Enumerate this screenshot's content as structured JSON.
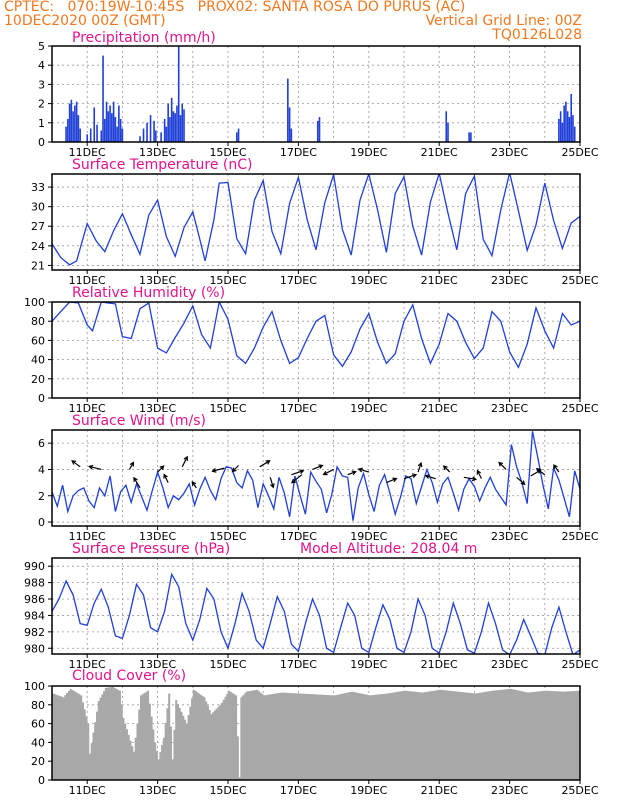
{
  "header": {
    "line1": "CPTEC:   070:19W-10:45S   PROX02: SANTA ROSA DO PURUS (AC)",
    "line2": "10DEC2020 00Z (GMT)",
    "grid_note": "Vertical Grid Line: 00Z",
    "code": "TQ0126L028"
  },
  "colors": {
    "header": "#f07820",
    "title": "#e0148c",
    "series": "#1f3fd8",
    "cloud": "#a8a8a8"
  },
  "x_axis": {
    "start": "10DEC2020 00Z",
    "days": 15,
    "tick_labels": [
      "11DEC",
      "13DEC",
      "15DEC",
      "17DEC",
      "19DEC",
      "21DEC",
      "23DEC",
      "25DEC"
    ],
    "tick_days": [
      1,
      3,
      5,
      7,
      9,
      11,
      13,
      15
    ]
  },
  "chart_data": [
    {
      "type": "bar",
      "title": "Precipitation (mm/h)",
      "ylim": [
        0,
        5
      ],
      "yticks": [
        0,
        1,
        2,
        3,
        4,
        5
      ],
      "x_unit": "days since 10DEC2020 00Z",
      "bars": [
        [
          0.4,
          0.8
        ],
        [
          0.45,
          1.2
        ],
        [
          0.5,
          2.0
        ],
        [
          0.55,
          2.2
        ],
        [
          0.6,
          1.6
        ],
        [
          0.65,
          1.9
        ],
        [
          0.7,
          2.1
        ],
        [
          0.75,
          1.4
        ],
        [
          0.8,
          0.7
        ],
        [
          1.0,
          0.4
        ],
        [
          1.1,
          0.7
        ],
        [
          1.2,
          1.8
        ],
        [
          1.28,
          0.9
        ],
        [
          1.4,
          0.6
        ],
        [
          1.45,
          4.5
        ],
        [
          1.5,
          1.2
        ],
        [
          1.55,
          2.1
        ],
        [
          1.6,
          1.6
        ],
        [
          1.65,
          1.9
        ],
        [
          1.7,
          1.5
        ],
        [
          1.75,
          2.1
        ],
        [
          1.8,
          1.3
        ],
        [
          1.85,
          0.8
        ],
        [
          1.9,
          1.9
        ],
        [
          1.95,
          1.2
        ],
        [
          2.0,
          0.7
        ],
        [
          2.5,
          0.3
        ],
        [
          2.6,
          0.7
        ],
        [
          2.7,
          1.0
        ],
        [
          2.8,
          1.4
        ],
        [
          2.9,
          1.1
        ],
        [
          2.95,
          0.6
        ],
        [
          3.1,
          0.5
        ],
        [
          3.2,
          1.2
        ],
        [
          3.25,
          0.8
        ],
        [
          3.3,
          2.0
        ],
        [
          3.35,
          1.3
        ],
        [
          3.4,
          2.3
        ],
        [
          3.45,
          1.6
        ],
        [
          3.5,
          1.5
        ],
        [
          3.55,
          1.9
        ],
        [
          3.6,
          5.0
        ],
        [
          3.65,
          1.4
        ],
        [
          3.7,
          2.0
        ],
        [
          3.75,
          1.7
        ],
        [
          5.25,
          0.5
        ],
        [
          5.3,
          0.7
        ],
        [
          6.7,
          3.3
        ],
        [
          6.75,
          1.8
        ],
        [
          6.8,
          0.7
        ],
        [
          7.55,
          1.1
        ],
        [
          7.6,
          1.3
        ],
        [
          11.2,
          1.6
        ],
        [
          11.25,
          1.0
        ],
        [
          11.85,
          0.5
        ],
        [
          11.9,
          0.5
        ],
        [
          14.4,
          1.2
        ],
        [
          14.45,
          1.6
        ],
        [
          14.5,
          1.0
        ],
        [
          14.55,
          1.9
        ],
        [
          14.6,
          2.1
        ],
        [
          14.65,
          1.6
        ],
        [
          14.7,
          1.3
        ],
        [
          14.75,
          2.5
        ],
        [
          14.8,
          1.4
        ],
        [
          14.85,
          0.8
        ]
      ]
    },
    {
      "type": "line",
      "title": "Surface Temperature (nC)",
      "ylim": [
        20.3,
        35
      ],
      "yticks": [
        21,
        24,
        27,
        30,
        33
      ],
      "x_unit": "days since 10DEC2020 00Z",
      "x": [
        0,
        0.25,
        0.5,
        0.7,
        0.9,
        1.0,
        1.25,
        1.5,
        1.75,
        2.0,
        2.25,
        2.5,
        2.75,
        3.0,
        3.25,
        3.5,
        3.75,
        4.0,
        4.2,
        4.35,
        4.6,
        4.75,
        5.0,
        5.25,
        5.5,
        5.75,
        6.0,
        6.25,
        6.5,
        6.75,
        7.0,
        7.25,
        7.5,
        7.75,
        8.0,
        8.25,
        8.5,
        8.75,
        9.0,
        9.25,
        9.5,
        9.75,
        10.0,
        10.25,
        10.5,
        10.75,
        11.0,
        11.25,
        11.5,
        11.75,
        12.0,
        12.25,
        12.5,
        12.75,
        13.0,
        13.25,
        13.5,
        13.75,
        14.0,
        14.25,
        14.5,
        14.75,
        15.0
      ],
      "y": [
        24.3,
        22.2,
        21.1,
        21.7,
        25.5,
        27.4,
        24.8,
        23.1,
        26.3,
        28.9,
        25.7,
        22.7,
        28.7,
        31.0,
        25.4,
        22.4,
        26.8,
        29.2,
        25.0,
        21.7,
        28.0,
        33.6,
        33.7,
        25.1,
        22.8,
        31.0,
        34.0,
        26.2,
        22.8,
        30.5,
        34.5,
        28.0,
        23.4,
        30.6,
        34.9,
        26.5,
        22.6,
        31.0,
        35.0,
        29.5,
        23.0,
        32.0,
        34.6,
        27.0,
        22.6,
        30.7,
        35.1,
        29.0,
        23.4,
        32.0,
        34.7,
        25.0,
        22.5,
        29.5,
        35.2,
        29.4,
        23.3,
        27.2,
        33.6,
        27.9,
        23.6,
        27.5,
        28.5
      ]
    },
    {
      "type": "line",
      "title": "Relative Humidity (%)",
      "ylim": [
        0,
        100
      ],
      "yticks": [
        0,
        20,
        40,
        60,
        80,
        100
      ],
      "x_unit": "days since 10DEC2020 00Z",
      "x": [
        0,
        0.25,
        0.5,
        0.75,
        1.0,
        1.15,
        1.4,
        1.6,
        1.8,
        2.0,
        2.25,
        2.5,
        2.75,
        3.0,
        3.25,
        3.5,
        3.75,
        4.0,
        4.25,
        4.5,
        4.75,
        5.0,
        5.25,
        5.5,
        5.75,
        6.0,
        6.25,
        6.5,
        6.75,
        7.0,
        7.25,
        7.5,
        7.75,
        8.0,
        8.25,
        8.5,
        8.75,
        9.0,
        9.25,
        9.5,
        9.75,
        10.0,
        10.25,
        10.5,
        10.75,
        11.0,
        11.25,
        11.5,
        11.75,
        12.0,
        12.25,
        12.5,
        12.75,
        13.0,
        13.25,
        13.5,
        13.75,
        14.0,
        14.25,
        14.5,
        14.75,
        15.0
      ],
      "y": [
        80,
        90,
        100,
        99,
        76,
        70,
        100,
        99,
        98,
        64,
        62,
        93,
        99,
        52,
        47,
        63,
        78,
        96,
        66,
        52,
        100,
        82,
        44,
        36,
        52,
        74,
        90,
        60,
        36,
        42,
        62,
        80,
        86,
        45,
        33,
        48,
        72,
        88,
        58,
        36,
        46,
        80,
        97,
        62,
        36,
        56,
        88,
        80,
        58,
        41,
        52,
        90,
        80,
        48,
        32,
        56,
        94,
        70,
        52,
        88,
        76,
        80
      ]
    },
    {
      "type": "line",
      "title": "Surface Wind (m/s)",
      "ylim": [
        -0.3,
        7
      ],
      "yticks": [
        0,
        2,
        4,
        6
      ],
      "x_unit": "days since 10DEC2020 00Z",
      "x": [
        0,
        0.15,
        0.3,
        0.45,
        0.6,
        0.75,
        0.9,
        1.05,
        1.2,
        1.35,
        1.5,
        1.65,
        1.8,
        1.95,
        2.1,
        2.25,
        2.4,
        2.55,
        2.7,
        2.85,
        3.0,
        3.15,
        3.3,
        3.45,
        3.6,
        3.75,
        3.9,
        4.05,
        4.2,
        4.35,
        4.5,
        4.65,
        4.8,
        4.95,
        5.1,
        5.25,
        5.4,
        5.55,
        5.7,
        5.85,
        6.0,
        6.15,
        6.3,
        6.45,
        6.6,
        6.75,
        6.9,
        7.05,
        7.2,
        7.35,
        7.5,
        7.65,
        7.8,
        7.95,
        8.1,
        8.25,
        8.4,
        8.55,
        8.7,
        8.85,
        9.0,
        9.15,
        9.3,
        9.45,
        9.6,
        9.75,
        9.9,
        10.05,
        10.2,
        10.35,
        10.5,
        10.65,
        10.8,
        10.95,
        11.1,
        11.25,
        11.4,
        11.55,
        11.7,
        11.85,
        12.0,
        12.15,
        12.3,
        12.45,
        12.6,
        12.75,
        12.9,
        13.05,
        13.2,
        13.35,
        13.5,
        13.65,
        13.8,
        13.95,
        14.1,
        14.25,
        14.4,
        14.55,
        14.7,
        14.85,
        15.0
      ],
      "y": [
        2.3,
        1.2,
        2.8,
        0.8,
        2.0,
        2.4,
        2.6,
        1.6,
        1.1,
        2.6,
        2.0,
        3.5,
        0.8,
        2.3,
        2.8,
        1.5,
        2.9,
        1.9,
        0.9,
        2.4,
        3.8,
        2.6,
        1.1,
        2.0,
        1.7,
        2.2,
        2.9,
        1.3,
        2.5,
        3.4,
        2.4,
        1.7,
        3.3,
        4.2,
        4.1,
        3.0,
        2.6,
        3.9,
        3.2,
        1.1,
        2.9,
        2.0,
        1.0,
        3.4,
        2.2,
        0.4,
        3.5,
        2.0,
        0.6,
        3.8,
        3.1,
        2.5,
        0.7,
        2.1,
        4.2,
        3.5,
        3.4,
        0.1,
        2.6,
        3.7,
        2.1,
        0.8,
        2.8,
        3.6,
        2.2,
        0.6,
        1.9,
        3.5,
        3.3,
        1.4,
        2.7,
        4.0,
        3.0,
        1.5,
        2.9,
        3.4,
        2.2,
        0.9,
        2.5,
        3.3,
        2.7,
        1.6,
        2.6,
        3.4,
        2.5,
        1.9,
        1.3,
        5.9,
        4.2,
        3.0,
        1.4,
        6.9,
        4.9,
        2.8,
        1.0,
        4.1,
        3.2,
        1.8,
        0.4,
        3.9,
        2.5
      ]
    },
    {
      "type": "line",
      "title": "Surface Pressure (hPa)",
      "annotation": "Model Altitude: 208.04 m",
      "ylim": [
        979.3,
        991
      ],
      "yticks": [
        980,
        982,
        984,
        986,
        988,
        990
      ],
      "x_unit": "days since 10DEC2020 00Z",
      "x": [
        0,
        0.2,
        0.4,
        0.6,
        0.8,
        1.0,
        1.2,
        1.4,
        1.6,
        1.8,
        2.0,
        2.2,
        2.4,
        2.6,
        2.8,
        3.0,
        3.2,
        3.4,
        3.6,
        3.8,
        4.0,
        4.2,
        4.4,
        4.6,
        4.8,
        5.0,
        5.2,
        5.4,
        5.6,
        5.8,
        6.0,
        6.2,
        6.4,
        6.6,
        6.8,
        7.0,
        7.2,
        7.4,
        7.6,
        7.8,
        8.0,
        8.2,
        8.4,
        8.6,
        8.8,
        9.0,
        9.2,
        9.4,
        9.6,
        9.8,
        10.0,
        10.2,
        10.4,
        10.6,
        10.8,
        11.0,
        11.2,
        11.4,
        11.6,
        11.8,
        12.0,
        12.2,
        12.4,
        12.6,
        12.8,
        13.0,
        13.2,
        13.4,
        13.6,
        13.8,
        14.0,
        14.2,
        14.4,
        14.6,
        14.8,
        15.0
      ],
      "y": [
        984.5,
        986.0,
        988.2,
        986.5,
        983.0,
        982.8,
        985.5,
        987.2,
        985.0,
        981.5,
        981.2,
        984.0,
        987.8,
        986.5,
        982.5,
        982.0,
        984.5,
        989.0,
        987.5,
        983.0,
        981.0,
        983.5,
        987.3,
        986.0,
        982.0,
        980.0,
        983.0,
        986.7,
        984.5,
        981.0,
        980.0,
        983.0,
        986.3,
        984.5,
        980.5,
        979.6,
        983.0,
        986.0,
        984.0,
        980.0,
        979.5,
        982.5,
        985.5,
        984.0,
        980.0,
        979.5,
        982.5,
        985.3,
        983.5,
        980.0,
        979.5,
        982.0,
        986.0,
        984.0,
        980.0,
        979.4,
        982.0,
        985.5,
        983.0,
        979.8,
        979.4,
        982.0,
        985.5,
        983.0,
        979.8,
        979.2,
        981.0,
        983.5,
        981.5,
        979.4,
        979.2,
        982.5,
        985.0,
        982.0,
        979.2,
        979.8
      ]
    },
    {
      "type": "bar",
      "title": "Cloud Cover (%)",
      "ylim": [
        0,
        100
      ],
      "yticks": [
        0,
        20,
        40,
        60,
        80,
        100
      ],
      "x_unit": "days since 10DEC2020 00Z",
      "profile_x": [
        0,
        0.3,
        0.5,
        0.8,
        1.0,
        1.05,
        1.3,
        1.5,
        1.7,
        1.9,
        2.0,
        2.3,
        2.5,
        2.7,
        2.9,
        3.0,
        3.15,
        3.3,
        3.4,
        3.5,
        3.8,
        4.0,
        4.3,
        4.5,
        4.8,
        5.0,
        5.2,
        5.3,
        5.35,
        5.5,
        5.8,
        6.0,
        6.5,
        7.0,
        7.5,
        8.0,
        8.5,
        9.0,
        9.5,
        10.0,
        10.5,
        11.0,
        11.5,
        12.0,
        12.5,
        13.0,
        13.5,
        14.0,
        14.5,
        15.0
      ],
      "profile_y": [
        92,
        88,
        97,
        90,
        60,
        28,
        84,
        98,
        99,
        95,
        66,
        30,
        90,
        95,
        40,
        22,
        45,
        92,
        22,
        85,
        60,
        96,
        88,
        70,
        82,
        95,
        90,
        3,
        88,
        94,
        96,
        90,
        93,
        92,
        91,
        90,
        94,
        90,
        92,
        95,
        93,
        96,
        94,
        92,
        95,
        97,
        93,
        95,
        94,
        95
      ]
    }
  ]
}
